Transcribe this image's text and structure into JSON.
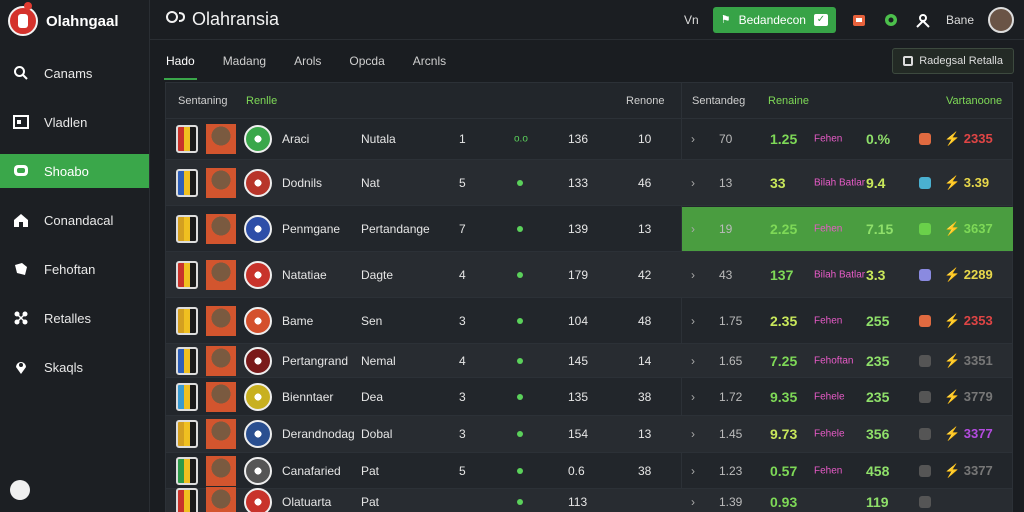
{
  "app": {
    "logo_text": "Olahngaal",
    "title": "Olahransia"
  },
  "header": {
    "link": "Vn",
    "green_button": "Bedandecon",
    "user": "Bane"
  },
  "tabs": [
    {
      "label": "Hado",
      "active": true
    },
    {
      "label": "Madang",
      "active": false
    },
    {
      "label": "Arols",
      "active": false
    },
    {
      "label": "Opcda",
      "active": false
    },
    {
      "label": "Arcnls",
      "active": false
    }
  ],
  "tab_action": "Radegsal Retalla",
  "sidebar": {
    "items": [
      {
        "label": "Canams",
        "icon": "search-icon",
        "active": false
      },
      {
        "label": "Vladlen",
        "icon": "screen-icon",
        "active": false
      },
      {
        "label": "Shoabo",
        "icon": "chat-icon",
        "active": true
      },
      {
        "label": "Conandacal",
        "icon": "home-icon",
        "active": false
      },
      {
        "label": "Fehoftan",
        "icon": "puzzle-icon",
        "active": false
      },
      {
        "label": "Retalles",
        "icon": "nodes-icon",
        "active": false
      },
      {
        "label": "Skaqls",
        "icon": "pin-icon",
        "active": false
      }
    ]
  },
  "table": {
    "headers": {
      "col1": "Sentaning",
      "col2": "Renlle",
      "col3": "Renone",
      "col4": "Sentandeg",
      "col5": "Renaine",
      "col6": "Vartanoone"
    },
    "rows": [
      {
        "name": "Araci",
        "team": "Nutala",
        "rank": "1",
        "trend": "o.o",
        "score": "136",
        "pos": "10",
        "odd_a": "70",
        "val": "1.25",
        "tag": "Fehen",
        "pct": "0.%",
        "change": "2335",
        "change_color": "red"
      },
      {
        "name": "Dodnils",
        "team": "Nat",
        "rank": "5",
        "trend": "",
        "score": "133",
        "pos": "46",
        "odd_a": "13",
        "val": "33",
        "tag": "Bilah Batlar",
        "pct": "9.4",
        "change": "3.39",
        "change_color": "yel"
      },
      {
        "name": "Penmgane",
        "team": "Pertandange",
        "rank": "7",
        "trend": "",
        "score": "139",
        "pos": "13",
        "odd_a": "19",
        "val": "2.25",
        "tag": "Fehen",
        "pct": "7.15",
        "change": "3637",
        "change_color": "grn",
        "highlight": true
      },
      {
        "name": "Natatiae",
        "team": "Dagte",
        "rank": "4",
        "trend": "",
        "score": "179",
        "pos": "42",
        "odd_a": "43",
        "val": "137",
        "tag": "Bilah Batlar",
        "pct": "3.3",
        "change": "2289",
        "change_color": "yel"
      },
      {
        "name": "Bame",
        "team": "Sen",
        "rank": "3",
        "trend": "",
        "score": "104",
        "pos": "48",
        "odd_a": "1.75",
        "val": "2.35",
        "tag": "Fehen",
        "pct": "255",
        "change": "2353",
        "change_color": "red"
      },
      {
        "name": "Pertangrand",
        "team": "Nemal",
        "rank": "4",
        "trend": "",
        "score": "145",
        "pos": "14",
        "odd_a": "1.65",
        "val": "7.25",
        "tag": "Fehoftan",
        "pct": "235",
        "change": "3351",
        "change_color": "mut"
      },
      {
        "name": "Bienntaer",
        "team": "Dea",
        "rank": "3",
        "trend": "",
        "score": "135",
        "pos": "38",
        "odd_a": "1.72",
        "val": "9.35",
        "tag": "Fehele",
        "pct": "235",
        "change": "3779",
        "change_color": "mut"
      },
      {
        "name": "Derandnodag",
        "team": "Dobal",
        "rank": "3",
        "trend": "",
        "score": "154",
        "pos": "13",
        "odd_a": "1.45",
        "val": "9.73",
        "tag": "Fehele",
        "pct": "356",
        "change": "3377",
        "change_color": "pur"
      },
      {
        "name": "Canafaried",
        "team": "Pat",
        "rank": "5",
        "trend": "",
        "score": "0.6",
        "pos": "38",
        "odd_a": "1.23",
        "val": "0.57",
        "tag": "Fehen",
        "pct": "458",
        "change": "3377",
        "change_color": "mut"
      },
      {
        "name": "Olatuarta",
        "team": "Pat",
        "rank": "",
        "trend": "",
        "score": "113",
        "pos": "",
        "odd_a": "1.39",
        "val": "0.93",
        "tag": "",
        "pct": "119",
        "change": "",
        "change_color": "mut"
      }
    ]
  },
  "colors": {
    "accent": "#3aa74a",
    "highlight": "#4a9d40",
    "background": "#1a1d21"
  }
}
